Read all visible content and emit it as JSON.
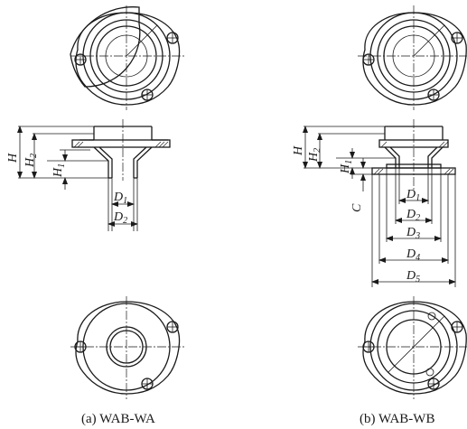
{
  "figure_a": {
    "caption": "(a) WAB-WA",
    "dimensions": {
      "H": "H",
      "H2": "2",
      "H1": "1",
      "D1": "1",
      "D2": "2"
    }
  },
  "figure_b": {
    "caption": "(b) WAB-WB",
    "dimensions": {
      "H": "H",
      "H2": "2",
      "H1": "1",
      "C": "C",
      "D1": "1",
      "D2": "2",
      "D3": "3",
      "D4": "4",
      "D5": "5"
    }
  }
}
